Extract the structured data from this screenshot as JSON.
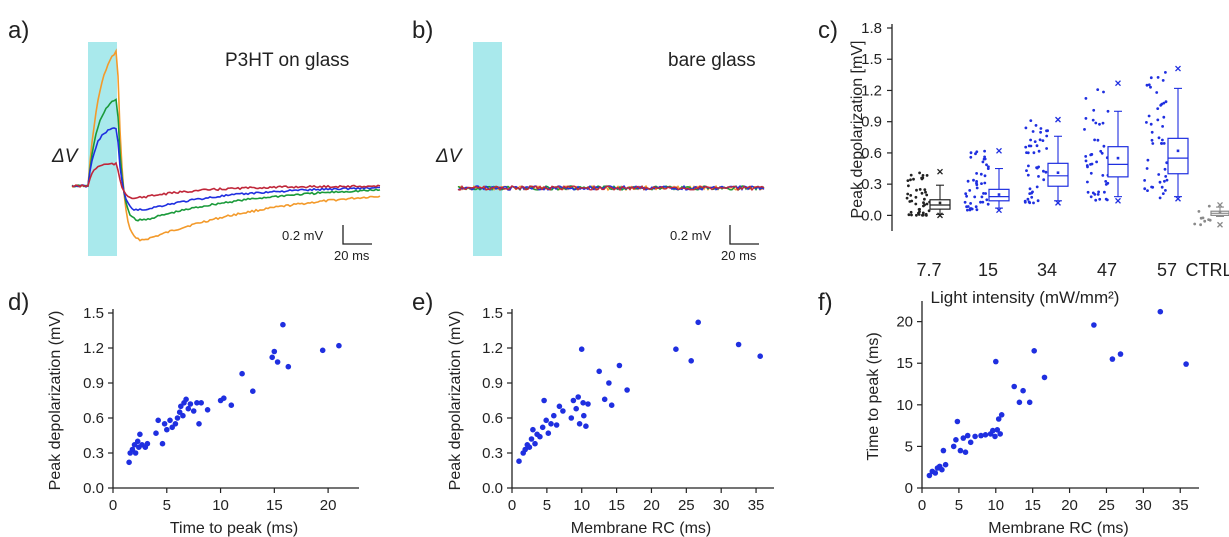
{
  "panels": {
    "a": {
      "letter": "a)",
      "title": "P3HT on glass",
      "delta": "ΔV",
      "scale_v": "0.2 mV",
      "scale_t": "20 ms"
    },
    "b": {
      "letter": "b)",
      "title": "bare glass",
      "delta": "ΔV",
      "scale_v": "0.2 mV",
      "scale_t": "20 ms"
    },
    "c": {
      "letter": "c)"
    },
    "d": {
      "letter": "d)"
    },
    "e": {
      "letter": "e)"
    },
    "f": {
      "letter": "f)"
    }
  },
  "colors": {
    "stimulus": "#a9e9ec",
    "traces": [
      "#f39a2b",
      "#1a9a3a",
      "#1f2fe0",
      "#c0273a"
    ],
    "points": "#1f2fe0",
    "low": "#222222",
    "ctrl": "#8a8a8a"
  },
  "chart_data": [
    {
      "panel": "a",
      "type": "line",
      "title": "P3HT on glass",
      "note": "Voltage traces (ΔV) during and after light stimulation; four intensities",
      "series": [
        {
          "color": "orange",
          "peak_mv": 1.0,
          "undershoot_mv": -0.45
        },
        {
          "color": "green",
          "peak_mv": 0.62,
          "undershoot_mv": -0.3
        },
        {
          "color": "blue",
          "peak_mv": 0.4,
          "undershoot_mv": -0.22
        },
        {
          "color": "red",
          "peak_mv": 0.15,
          "undershoot_mv": -0.12
        }
      ]
    },
    {
      "panel": "b",
      "type": "line",
      "title": "bare glass",
      "note": "Flat noise-level traces, no light response",
      "series": [
        {
          "color": "orange",
          "peak_mv": 0.02
        },
        {
          "color": "green",
          "peak_mv": 0.02
        },
        {
          "color": "blue",
          "peak_mv": 0.02
        },
        {
          "color": "red",
          "peak_mv": 0.02
        }
      ]
    },
    {
      "panel": "c",
      "type": "box",
      "ylabel": "Peak depolarization [mV]",
      "xlabel": "Light intensity (mW/mm²)",
      "ylim": [
        -0.15,
        1.8
      ],
      "yticks": [
        "0.0",
        "0.3",
        "0.6",
        "0.9",
        "1.2",
        "1.5",
        "1.8"
      ],
      "categories": [
        "7.7",
        "15",
        "34",
        "47",
        "57",
        "CTRL"
      ],
      "boxes": [
        {
          "q1": 0.06,
          "median": 0.1,
          "q3": 0.15,
          "mean": 0.12,
          "whisker_low": 0.01,
          "whisker_high": 0.29,
          "max": 0.42,
          "min": 0.0
        },
        {
          "q1": 0.14,
          "median": 0.18,
          "q3": 0.25,
          "mean": 0.2,
          "whisker_low": 0.07,
          "whisker_high": 0.45,
          "max": 0.62,
          "min": 0.05
        },
        {
          "q1": 0.28,
          "median": 0.38,
          "q3": 0.5,
          "mean": 0.41,
          "whisker_low": 0.14,
          "whisker_high": 0.76,
          "max": 0.92,
          "min": 0.12
        },
        {
          "q1": 0.37,
          "median": 0.49,
          "q3": 0.66,
          "mean": 0.55,
          "whisker_low": 0.18,
          "whisker_high": 1.0,
          "max": 1.27,
          "min": 0.14
        },
        {
          "q1": 0.4,
          "median": 0.55,
          "q3": 0.74,
          "mean": 0.62,
          "whisker_low": 0.18,
          "whisker_high": 1.22,
          "max": 1.41,
          "min": 0.16
        },
        {
          "q1": 0.0,
          "median": 0.02,
          "q3": 0.04,
          "mean": 0.03,
          "whisker_low": -0.01,
          "whisker_high": 0.08,
          "max": 0.1,
          "min": -0.09
        }
      ]
    },
    {
      "panel": "d",
      "type": "scatter",
      "xlabel": "Time to peak (ms)",
      "ylabel": "Peak depolarization (mV)",
      "xlim": [
        0,
        22.5
      ],
      "ylim": [
        0,
        1.5
      ],
      "xticks": [
        "0",
        "5",
        "10",
        "15",
        "20"
      ],
      "yticks": [
        "0.0",
        "0.3",
        "0.6",
        "0.9",
        "1.2",
        "1.5"
      ],
      "points": [
        [
          1.5,
          0.22
        ],
        [
          1.6,
          0.3
        ],
        [
          1.8,
          0.33
        ],
        [
          2.0,
          0.37
        ],
        [
          2.1,
          0.3
        ],
        [
          2.3,
          0.4
        ],
        [
          2.4,
          0.35
        ],
        [
          2.5,
          0.46
        ],
        [
          2.7,
          0.37
        ],
        [
          3.0,
          0.35
        ],
        [
          3.2,
          0.38
        ],
        [
          4.0,
          0.47
        ],
        [
          4.2,
          0.58
        ],
        [
          4.6,
          0.38
        ],
        [
          4.8,
          0.55
        ],
        [
          5.0,
          0.5
        ],
        [
          5.3,
          0.58
        ],
        [
          5.5,
          0.52
        ],
        [
          5.8,
          0.55
        ],
        [
          6.0,
          0.6
        ],
        [
          6.2,
          0.65
        ],
        [
          6.3,
          0.7
        ],
        [
          6.5,
          0.62
        ],
        [
          6.6,
          0.73
        ],
        [
          6.8,
          0.76
        ],
        [
          7.0,
          0.68
        ],
        [
          7.2,
          0.72
        ],
        [
          7.5,
          0.66
        ],
        [
          7.8,
          0.73
        ],
        [
          8.0,
          0.55
        ],
        [
          8.2,
          0.73
        ],
        [
          8.8,
          0.67
        ],
        [
          10.0,
          0.75
        ],
        [
          10.3,
          0.77
        ],
        [
          11.0,
          0.71
        ],
        [
          12.0,
          0.98
        ],
        [
          13.0,
          0.83
        ],
        [
          14.8,
          1.12
        ],
        [
          15.0,
          1.17
        ],
        [
          15.3,
          1.08
        ],
        [
          15.8,
          1.4
        ],
        [
          16.3,
          1.04
        ],
        [
          19.5,
          1.18
        ],
        [
          21.0,
          1.22
        ]
      ]
    },
    {
      "panel": "e",
      "type": "scatter",
      "xlabel": "Membrane RC (ms)",
      "ylabel": "Peak depolarization (mV)",
      "xlim": [
        0,
        37
      ],
      "ylim": [
        0,
        1.5
      ],
      "xticks": [
        "0",
        "5",
        "10",
        "15",
        "20",
        "25",
        "30",
        "35"
      ],
      "yticks": [
        "0.0",
        "0.3",
        "0.6",
        "0.9",
        "1.2",
        "1.5"
      ],
      "points": [
        [
          1.0,
          0.23
        ],
        [
          1.6,
          0.3
        ],
        [
          1.9,
          0.33
        ],
        [
          2.2,
          0.37
        ],
        [
          2.5,
          0.35
        ],
        [
          2.8,
          0.42
        ],
        [
          3.0,
          0.5
        ],
        [
          3.3,
          0.38
        ],
        [
          3.6,
          0.46
        ],
        [
          4.0,
          0.44
        ],
        [
          4.4,
          0.52
        ],
        [
          4.6,
          0.75
        ],
        [
          4.9,
          0.58
        ],
        [
          5.2,
          0.47
        ],
        [
          5.6,
          0.55
        ],
        [
          6.0,
          0.62
        ],
        [
          6.4,
          0.54
        ],
        [
          6.8,
          0.7
        ],
        [
          7.3,
          0.66
        ],
        [
          8.5,
          0.6
        ],
        [
          8.8,
          0.75
        ],
        [
          9.2,
          0.68
        ],
        [
          9.5,
          0.78
        ],
        [
          9.7,
          0.55
        ],
        [
          10.0,
          1.19
        ],
        [
          10.2,
          0.73
        ],
        [
          10.3,
          0.62
        ],
        [
          10.6,
          0.53
        ],
        [
          10.9,
          0.72
        ],
        [
          12.5,
          1.0
        ],
        [
          13.3,
          0.76
        ],
        [
          13.9,
          0.9
        ],
        [
          14.3,
          0.71
        ],
        [
          15.4,
          1.05
        ],
        [
          16.5,
          0.84
        ],
        [
          23.5,
          1.19
        ],
        [
          25.7,
          1.09
        ],
        [
          26.7,
          1.42
        ],
        [
          32.5,
          1.23
        ],
        [
          35.6,
          1.13
        ]
      ]
    },
    {
      "panel": "f",
      "type": "scatter",
      "xlabel": "Membrane RC (ms)",
      "ylabel": "Time to peak (ms)",
      "xlim": [
        0,
        37
      ],
      "ylim": [
        0,
        22
      ],
      "xticks": [
        "0",
        "5",
        "10",
        "15",
        "20",
        "25",
        "30",
        "35"
      ],
      "yticks": [
        "0",
        "5",
        "10",
        "15",
        "20"
      ],
      "points": [
        [
          1.0,
          1.5
        ],
        [
          1.4,
          2.0
        ],
        [
          1.8,
          1.8
        ],
        [
          2.1,
          2.4
        ],
        [
          2.4,
          2.6
        ],
        [
          2.7,
          2.2
        ],
        [
          2.9,
          4.5
        ],
        [
          3.2,
          2.8
        ],
        [
          4.3,
          5.0
        ],
        [
          4.6,
          5.8
        ],
        [
          4.8,
          8.0
        ],
        [
          5.2,
          4.5
        ],
        [
          5.6,
          6.0
        ],
        [
          5.9,
          4.3
        ],
        [
          6.2,
          6.3
        ],
        [
          6.6,
          5.5
        ],
        [
          7.2,
          6.2
        ],
        [
          8.0,
          6.3
        ],
        [
          8.6,
          6.4
        ],
        [
          9.3,
          6.5
        ],
        [
          9.6,
          6.9
        ],
        [
          9.9,
          6.2
        ],
        [
          10.0,
          15.2
        ],
        [
          10.2,
          7.0
        ],
        [
          10.4,
          8.3
        ],
        [
          10.6,
          6.5
        ],
        [
          10.8,
          8.8
        ],
        [
          12.5,
          12.2
        ],
        [
          13.2,
          10.3
        ],
        [
          13.7,
          11.7
        ],
        [
          14.6,
          10.3
        ],
        [
          15.2,
          16.5
        ],
        [
          16.6,
          13.3
        ],
        [
          23.3,
          19.6
        ],
        [
          25.8,
          15.5
        ],
        [
          26.9,
          16.1
        ],
        [
          32.3,
          21.2
        ],
        [
          35.8,
          14.9
        ]
      ]
    }
  ]
}
